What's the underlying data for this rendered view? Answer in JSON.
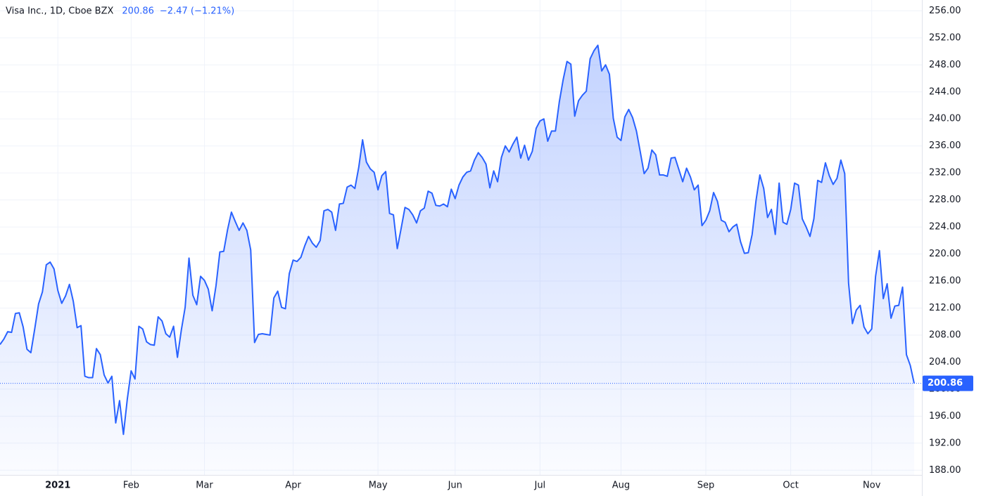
{
  "chart_data": {
    "type": "area",
    "title": "Visa Inc., 1D, Cboe BZX",
    "change": "−2.47 (−1.21%)",
    "color": "#2962ff",
    "grid": true,
    "ylim": [
      187.3,
      257.6
    ],
    "yticks": [
      {
        "value": 188,
        "label": "188.00"
      },
      {
        "value": 192,
        "label": "192.00"
      },
      {
        "value": 196,
        "label": "196.00"
      },
      {
        "value": 200,
        "label": "200.00"
      },
      {
        "value": 204,
        "label": "204.00"
      },
      {
        "value": 208,
        "label": "208.00"
      },
      {
        "value": 212,
        "label": "212.00"
      },
      {
        "value": 216,
        "label": "216.00"
      },
      {
        "value": 220,
        "label": "220.00"
      },
      {
        "value": 224,
        "label": "224.00"
      },
      {
        "value": 228,
        "label": "228.00"
      },
      {
        "value": 232,
        "label": "232.00"
      },
      {
        "value": 236,
        "label": "236.00"
      },
      {
        "value": 240,
        "label": "240.00"
      },
      {
        "value": 244,
        "label": "244.00"
      },
      {
        "value": 248,
        "label": "248.00"
      },
      {
        "value": 252,
        "label": "252.00"
      },
      {
        "value": 256,
        "label": "256.00"
      }
    ],
    "xticks": [
      {
        "value": 15,
        "label": "2021"
      },
      {
        "value": 34,
        "label": "Feb"
      },
      {
        "value": 53,
        "label": "Mar"
      },
      {
        "value": 76,
        "label": "Apr"
      },
      {
        "value": 98,
        "label": "May"
      },
      {
        "value": 118,
        "label": "Jun"
      },
      {
        "value": 140,
        "label": "Jul"
      },
      {
        "value": 161,
        "label": "Aug"
      },
      {
        "value": 183,
        "label": "Sep"
      },
      {
        "value": 205,
        "label": "Oct"
      },
      {
        "value": 226,
        "label": "Nov"
      }
    ],
    "values": [
      206.6,
      207.4,
      208.5,
      208.4,
      211.2,
      211.3,
      209.2,
      205.9,
      205.4,
      208.9,
      212.6,
      214.4,
      218.4,
      218.8,
      217.8,
      214.6,
      212.7,
      213.8,
      215.5,
      213.0,
      209.1,
      209.4,
      201.9,
      201.7,
      201.7,
      206.0,
      205.1,
      202.1,
      200.9,
      201.9,
      195.0,
      198.3,
      193.3,
      198.5,
      202.7,
      201.5,
      209.3,
      208.9,
      207.0,
      206.6,
      206.5,
      210.7,
      210.1,
      208.2,
      207.7,
      209.3,
      204.7,
      208.7,
      212.1,
      219.4,
      213.9,
      212.5,
      216.7,
      216.1,
      214.8,
      211.6,
      215.3,
      220.3,
      220.4,
      223.6,
      226.2,
      224.8,
      223.5,
      224.6,
      223.5,
      220.6,
      206.9,
      208.1,
      208.2,
      208.1,
      208.0,
      213.5,
      214.5,
      212.1,
      211.9,
      217.1,
      219.1,
      218.9,
      219.5,
      221.2,
      222.6,
      221.6,
      221.0,
      222.0,
      226.4,
      226.6,
      226.2,
      223.5,
      227.4,
      227.5,
      229.9,
      230.2,
      229.7,
      232.8,
      236.9,
      233.6,
      232.6,
      232.1,
      229.5,
      231.6,
      232.2,
      226.0,
      225.8,
      220.8,
      223.8,
      226.9,
      226.6,
      225.8,
      224.6,
      226.4,
      226.8,
      229.3,
      229.0,
      227.2,
      227.1,
      227.4,
      227.0,
      229.6,
      228.2,
      230.2,
      231.4,
      232.1,
      232.3,
      233.9,
      235.0,
      234.3,
      233.3,
      229.8,
      232.3,
      230.7,
      234.3,
      236.0,
      235.1,
      236.3,
      237.3,
      234.2,
      236.1,
      233.9,
      235.2,
      238.6,
      239.7,
      240.0,
      236.7,
      238.2,
      238.2,
      242.5,
      245.8,
      248.5,
      248.1,
      240.4,
      242.7,
      243.5,
      244.1,
      248.9,
      250.1,
      250.9,
      247.1,
      248.0,
      246.6,
      240.1,
      237.3,
      236.8,
      240.3,
      241.4,
      240.2,
      238.2,
      235.1,
      231.9,
      232.7,
      235.4,
      234.7,
      231.7,
      231.7,
      231.5,
      234.2,
      234.3,
      232.5,
      230.7,
      232.7,
      231.4,
      229.5,
      230.2,
      224.2,
      225.0,
      226.4,
      229.1,
      227.8,
      225.0,
      224.7,
      223.3,
      224.0,
      224.4,
      221.8,
      220.1,
      220.2,
      222.9,
      227.9,
      231.7,
      229.7,
      225.4,
      226.6,
      222.9,
      230.5,
      224.7,
      224.4,
      226.6,
      230.5,
      230.2,
      225.2,
      224.0,
      222.6,
      225.2,
      230.9,
      230.6,
      233.5,
      231.6,
      230.3,
      231.2,
      233.9,
      231.9,
      215.7,
      209.7,
      211.7,
      212.4,
      209.2,
      208.2,
      208.9,
      216.7,
      220.5,
      213.4,
      215.6,
      210.5,
      212.3,
      212.4,
      215.1,
      205.1,
      203.5,
      200.86
    ]
  }
}
